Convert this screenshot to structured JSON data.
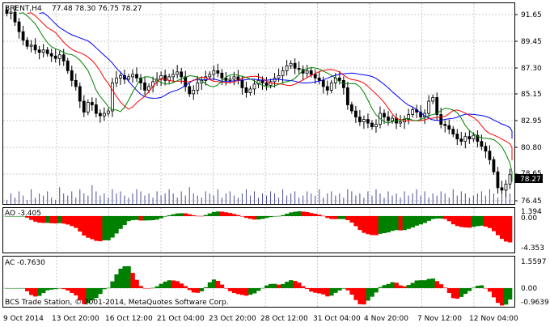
{
  "main_panel": {
    "header": "BRENT,H4",
    "ohlc": "77.48 78.30 76.75 78.27",
    "last_price_label": "78.27",
    "price_ticks": [
      "91.65",
      "89.45",
      "87.30",
      "85.15",
      "82.95",
      "80.80",
      "78.65",
      "76.45"
    ],
    "partial_tick_label": "78.65"
  },
  "ao_panel": {
    "header": "AO -3.405",
    "ticks": [
      "1.394",
      "0.00",
      "-4.353"
    ]
  },
  "ac_panel": {
    "header": "AC -0.7630",
    "ticks": [
      "1.5597",
      "0.00",
      "-0.9639"
    ]
  },
  "copyright": "BCS Trade Station, © 2001-2014, MetaQuotes Software Corp.",
  "time_axis": [
    "9 Oct 2014",
    "13 Oct 20:00",
    "16 Oct 12:00",
    "21 Oct 04:00",
    "23 Oct 20:00",
    "28 Oct 12:00",
    "31 Oct 04:00",
    "4 Nov 20:00",
    "7 Nov 12:00",
    "12 Nov 04:00"
  ],
  "colors": {
    "ma_fast": "#008000",
    "ma_mid": "#ff0000",
    "ma_slow": "#0000ff",
    "bar_up": "#008000",
    "bar_down": "#ff0000",
    "grid": "#c8c8c8",
    "volume": "#4d4d9a"
  },
  "chart_data": {
    "type": "candlestick",
    "y_range": [
      76.0,
      92.2
    ],
    "close_path": [
      [
        0,
        91.5
      ],
      [
        1,
        91.6
      ],
      [
        2,
        90.8
      ],
      [
        3,
        90.0
      ],
      [
        4,
        89.3
      ],
      [
        5,
        88.8
      ],
      [
        6,
        88.9
      ],
      [
        7,
        88.5
      ],
      [
        8,
        88.3
      ],
      [
        9,
        88.5
      ],
      [
        10,
        88.2
      ],
      [
        11,
        88.0
      ],
      [
        12,
        87.8
      ],
      [
        13,
        88.1
      ],
      [
        14,
        87.6
      ],
      [
        15,
        86.8
      ],
      [
        16,
        86.0
      ],
      [
        17,
        85.5
      ],
      [
        18,
        84.3
      ],
      [
        19,
        83.4
      ],
      [
        20,
        84.2
      ],
      [
        21,
        84.0
      ],
      [
        22,
        83.3
      ],
      [
        23,
        83.1
      ],
      [
        24,
        83.3
      ],
      [
        25,
        83.5
      ],
      [
        26,
        85.8
      ],
      [
        27,
        86.2
      ],
      [
        28,
        86.4
      ],
      [
        29,
        86.1
      ],
      [
        30,
        86.3
      ],
      [
        31,
        86.5
      ],
      [
        32,
        86.2
      ],
      [
        33,
        85.8
      ],
      [
        34,
        85.2
      ],
      [
        35,
        85.5
      ],
      [
        36,
        85.9
      ],
      [
        37,
        86.1
      ],
      [
        38,
        86.4
      ],
      [
        39,
        86.0
      ],
      [
        40,
        86.3
      ],
      [
        41,
        86.5
      ],
      [
        42,
        86.7
      ],
      [
        43,
        86.3
      ],
      [
        44,
        85.5
      ],
      [
        45,
        84.9
      ],
      [
        46,
        85.2
      ],
      [
        47,
        85.8
      ],
      [
        48,
        86.0
      ],
      [
        49,
        86.3
      ],
      [
        50,
        86.5
      ],
      [
        51,
        86.8
      ],
      [
        52,
        86.6
      ],
      [
        53,
        86.2
      ],
      [
        54,
        86.0
      ],
      [
        55,
        86.1
      ],
      [
        56,
        86.3
      ],
      [
        57,
        86.0
      ],
      [
        58,
        85.4
      ],
      [
        59,
        85.0
      ],
      [
        60,
        85.3
      ],
      [
        61,
        85.7
      ],
      [
        62,
        86.0
      ],
      [
        63,
        85.8
      ],
      [
        64,
        85.6
      ],
      [
        65,
        85.9
      ],
      [
        66,
        86.2
      ],
      [
        67,
        86.4
      ],
      [
        68,
        86.8
      ],
      [
        69,
        87.2
      ],
      [
        70,
        87.4
      ],
      [
        71,
        87.0
      ],
      [
        72,
        86.9
      ],
      [
        73,
        86.6
      ],
      [
        74,
        86.8
      ],
      [
        75,
        86.5
      ],
      [
        76,
        86.2
      ],
      [
        77,
        86.0
      ],
      [
        78,
        85.5
      ],
      [
        79,
        85.2
      ],
      [
        80,
        85.8
      ],
      [
        81,
        86.2
      ],
      [
        82,
        86.0
      ],
      [
        83,
        85.4
      ],
      [
        84,
        84.0
      ],
      [
        85,
        83.5
      ],
      [
        86,
        83.0
      ],
      [
        87,
        82.6
      ],
      [
        88,
        82.8
      ],
      [
        89,
        82.5
      ],
      [
        90,
        82.2
      ],
      [
        91,
        82.4
      ],
      [
        92,
        83.3
      ],
      [
        93,
        83.0
      ],
      [
        94,
        82.7
      ],
      [
        95,
        82.9
      ],
      [
        96,
        82.5
      ],
      [
        97,
        82.6
      ],
      [
        98,
        82.8
      ],
      [
        99,
        83.2
      ],
      [
        100,
        83.6
      ],
      [
        101,
        83.4
      ],
      [
        102,
        83.0
      ],
      [
        103,
        83.3
      ],
      [
        104,
        84.3
      ],
      [
        105,
        84.6
      ],
      [
        106,
        83.2
      ],
      [
        107,
        82.4
      ],
      [
        108,
        82.3
      ],
      [
        109,
        82.0
      ],
      [
        110,
        81.6
      ],
      [
        111,
        81.2
      ],
      [
        112,
        81.0
      ],
      [
        113,
        81.4
      ],
      [
        114,
        81.2
      ],
      [
        115,
        81.5
      ],
      [
        116,
        81.0
      ],
      [
        117,
        80.6
      ],
      [
        118,
        80.2
      ],
      [
        119,
        79.5
      ],
      [
        120,
        78.5
      ],
      [
        121,
        77.2
      ],
      [
        122,
        77.0
      ],
      [
        123,
        77.5
      ],
      [
        124,
        78.27
      ]
    ],
    "volume": [
      2,
      5,
      3,
      6,
      4,
      2,
      7,
      3,
      5,
      4,
      6,
      3,
      2,
      8,
      5,
      4,
      6,
      3,
      7,
      5,
      4,
      9,
      6,
      4,
      5,
      3,
      7,
      5,
      6,
      4,
      3,
      5,
      7,
      6,
      4,
      5,
      3,
      6,
      4,
      5,
      7,
      5,
      3,
      6,
      4,
      8,
      5,
      4,
      3,
      6,
      5,
      4,
      7,
      3,
      5,
      6,
      4,
      3,
      5,
      7,
      4,
      6,
      3,
      5,
      4,
      6,
      5,
      3,
      7,
      4,
      5,
      6,
      3,
      4,
      6,
      5,
      4,
      7,
      3,
      5,
      6,
      4,
      5,
      3,
      7,
      6,
      4,
      5,
      3,
      6,
      4,
      7,
      5,
      3,
      6,
      4,
      5,
      3,
      6,
      4,
      5,
      7,
      4,
      6,
      3,
      5,
      4,
      6,
      5,
      3,
      7,
      4,
      6,
      5,
      3,
      4,
      5,
      6,
      4,
      7,
      5,
      3,
      6,
      4,
      5
    ],
    "ao_range": [
      -4.353,
      1.394
    ],
    "ac_range": [
      -0.9639,
      1.5597
    ]
  }
}
